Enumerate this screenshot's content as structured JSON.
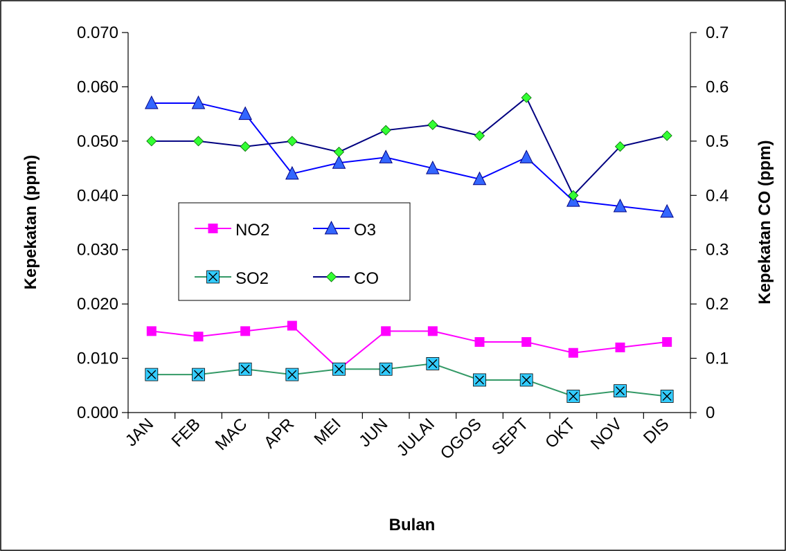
{
  "chart_data": {
    "type": "line",
    "xlabel": "Bulan",
    "ylabel_left": "Kepekatan (ppm)",
    "ylabel_right": "Kepekatan CO (ppm)",
    "categories": [
      "JAN",
      "FEB",
      "MAC",
      "APR",
      "MEI",
      "JUN",
      "JULAI",
      "OGOS",
      "SEPT",
      "OKT",
      "NOV",
      "DIS"
    ],
    "y_left": {
      "min": 0,
      "max": 0.07,
      "ticks": [
        "0.000",
        "0.010",
        "0.020",
        "0.030",
        "0.040",
        "0.050",
        "0.060",
        "0.070"
      ]
    },
    "y_right": {
      "min": 0,
      "max": 0.7,
      "ticks": [
        "0",
        "0.1",
        "0.2",
        "0.3",
        "0.4",
        "0.5",
        "0.6",
        "0.7"
      ]
    },
    "grid": false,
    "legend_position": "center-left",
    "series": [
      {
        "name": "NO2",
        "axis": "left",
        "color": "#ff00ff",
        "marker": "square",
        "values": [
          0.015,
          0.014,
          0.015,
          0.016,
          0.008,
          0.015,
          0.015,
          0.013,
          0.013,
          0.011,
          0.012,
          0.013
        ]
      },
      {
        "name": "O3",
        "axis": "left",
        "color": "#0000ff",
        "marker_fill": "#3366ff",
        "marker": "triangle",
        "values": [
          0.057,
          0.057,
          0.055,
          0.044,
          0.046,
          0.047,
          0.045,
          0.043,
          0.047,
          0.039,
          0.038,
          0.037
        ]
      },
      {
        "name": "SO2",
        "axis": "left",
        "color": "#339966",
        "marker_fill": "#33ccff",
        "marker": "x-square",
        "values": [
          0.007,
          0.007,
          0.008,
          0.007,
          0.008,
          0.008,
          0.009,
          0.006,
          0.006,
          0.003,
          0.004,
          0.003
        ]
      },
      {
        "name": "CO",
        "axis": "right",
        "color": "#000080",
        "marker_fill": "#33ff33",
        "marker": "diamond",
        "values": [
          0.5,
          0.5,
          0.49,
          0.5,
          0.48,
          0.52,
          0.53,
          0.51,
          0.58,
          0.4,
          0.49,
          0.51
        ]
      }
    ]
  }
}
